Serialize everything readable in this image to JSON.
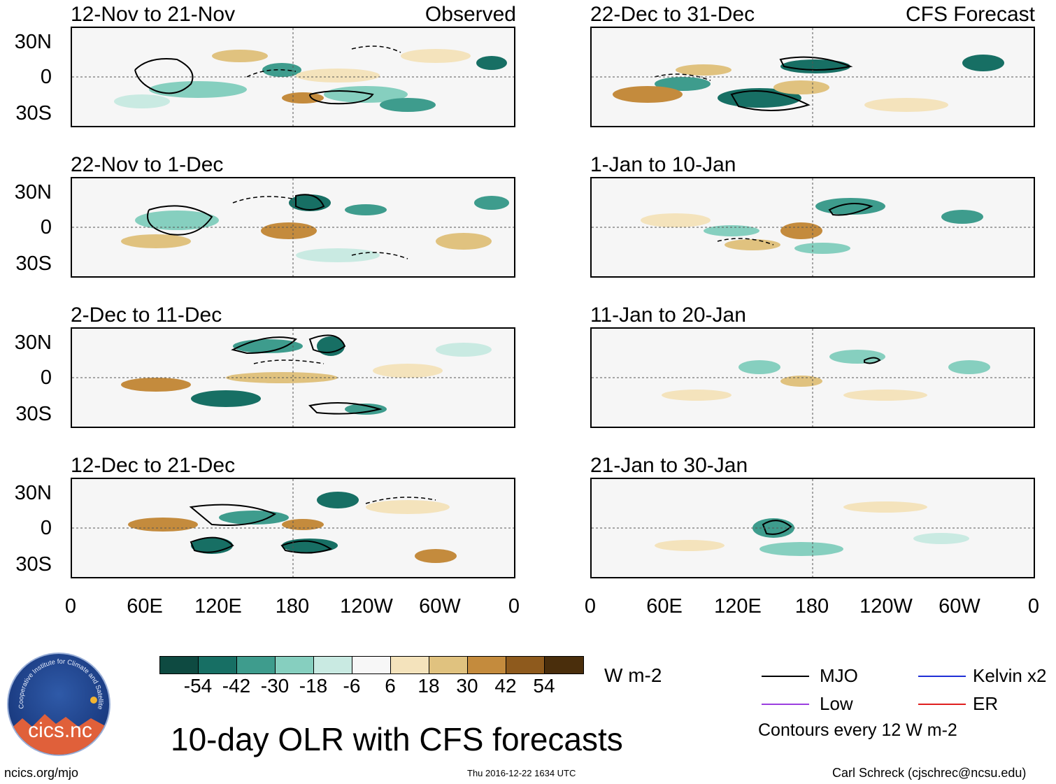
{
  "headers": {
    "observed": "Observed",
    "forecast": "CFS Forecast"
  },
  "panels": [
    {
      "period": "12-Nov to 21-Nov",
      "column": "observed"
    },
    {
      "period": "22-Nov to 1-Dec",
      "column": "observed"
    },
    {
      "period": "2-Dec to 11-Dec",
      "column": "observed"
    },
    {
      "period": "12-Dec to 21-Dec",
      "column": "observed"
    },
    {
      "period": "22-Dec to 31-Dec",
      "column": "forecast"
    },
    {
      "period": "1-Jan to 10-Jan",
      "column": "forecast"
    },
    {
      "period": "11-Jan to 20-Jan",
      "column": "forecast"
    },
    {
      "period": "21-Jan to 30-Jan",
      "column": "forecast"
    }
  ],
  "chart_data": {
    "type": "heatmap",
    "title": "10-day OLR with CFS forecasts",
    "units": "W m-2",
    "y_ticks": [
      "30N",
      "0",
      "30S"
    ],
    "x_ticks": [
      "0",
      "60E",
      "120E",
      "180",
      "120W",
      "60W",
      "0"
    ],
    "colorbar": {
      "labels": [
        "-54",
        "-42",
        "-30",
        "-18",
        "-6",
        "6",
        "18",
        "30",
        "42",
        "54"
      ],
      "colors": [
        "#0e4a41",
        "#176f64",
        "#3e9c8d",
        "#86cfbf",
        "#c9eae2",
        "#f7f7f7",
        "#f4e3bc",
        "#e0c27f",
        "#c48b3d",
        "#8e5a1d",
        "#4a2e0c"
      ]
    },
    "legend": [
      {
        "label": "MJO",
        "color": "#000000"
      },
      {
        "label": "Kelvin x2",
        "color": "#1f2fd6"
      },
      {
        "label": "Low",
        "color": "#9b3fe0"
      },
      {
        "label": "ER",
        "color": "#e01f1f"
      }
    ],
    "contour_note": "Contours every 12 W m-2"
  },
  "footer": {
    "logo_text": "cics.nc",
    "logo_ring_text": "Cooperative Institute for Climate and Satellites",
    "left": "ncics.org/mjo",
    "center": "Thu 2016-12-22 1634 UTC",
    "right": "Carl Schreck (cjschrec@ncsu.edu)"
  }
}
